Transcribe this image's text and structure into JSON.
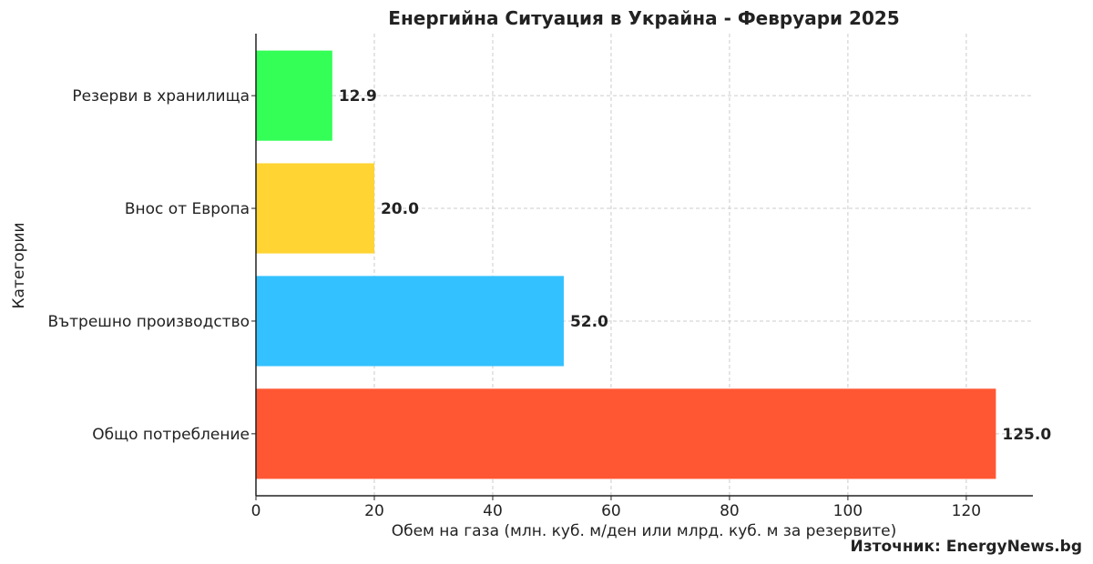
{
  "chart_data": {
    "type": "bar",
    "orientation": "horizontal",
    "title": "Енергийна Ситуация в Украйна - Февруари 2025",
    "xlabel": "Обем на газа (млн. куб. м/ден или млрд. куб. м за резервите)",
    "ylabel": "Категории",
    "categories": [
      "Общо потребление",
      "Вътрешно производство",
      "Внос от Европа",
      "Резерви в хранилища"
    ],
    "values": [
      125.0,
      52.0,
      20.0,
      12.9
    ],
    "value_labels": [
      "125.0",
      "52.0",
      "20.0",
      "12.9"
    ],
    "colors": [
      "#FF5733",
      "#33C1FF",
      "#FFD433",
      "#33FF57"
    ],
    "xlim": [
      0,
      131.25
    ],
    "xticks": [
      0,
      20,
      40,
      60,
      80,
      100,
      120
    ],
    "xtick_labels": [
      "0",
      "20",
      "40",
      "60",
      "80",
      "100",
      "120"
    ],
    "grid": true,
    "legend": "none"
  },
  "source_text": "Източник: EnergyNews.bg"
}
